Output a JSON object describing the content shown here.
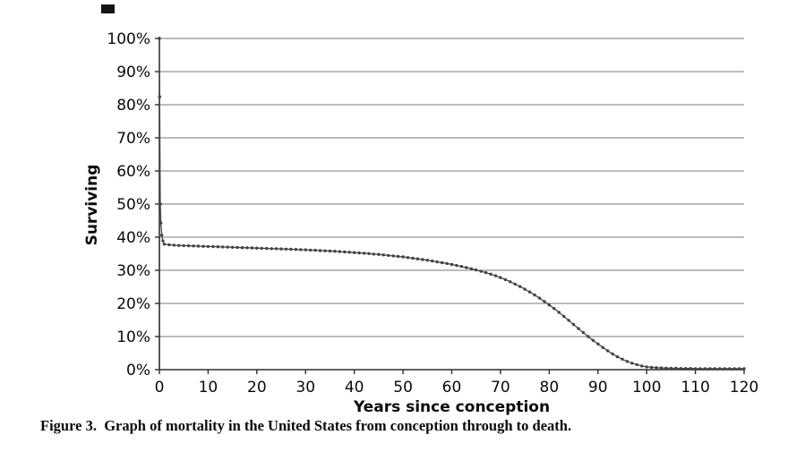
{
  "figure": {
    "caption": "Figure 3.  Graph of mortality in the United States from conception through to death."
  },
  "chart_data": {
    "type": "line",
    "title": "",
    "xlabel": "Years since conception",
    "ylabel": "Surviving",
    "xlim": [
      0,
      120
    ],
    "ylim": [
      0,
      100
    ],
    "grid": "horizontal",
    "legend_position": "none",
    "x_tick_values": [
      0,
      10,
      20,
      30,
      40,
      50,
      60,
      70,
      80,
      90,
      100,
      110,
      120
    ],
    "x_tick_labels": [
      "0",
      "10",
      "20",
      "30",
      "40",
      "50",
      "60",
      "70",
      "80",
      "90",
      "100",
      "110",
      "120"
    ],
    "y_tick_values": [
      0,
      10,
      20,
      30,
      40,
      50,
      60,
      70,
      80,
      90,
      100
    ],
    "y_tick_labels": [
      "0%",
      "10%",
      "20%",
      "30%",
      "40%",
      "50%",
      "60%",
      "70%",
      "80%",
      "90%",
      "100%"
    ],
    "colors": {
      "line": "#4a4a4a",
      "marker": "#434343",
      "grid": "#7a7a7a",
      "axis": "#2e2e2e",
      "text": "#0a0a0a"
    },
    "marker_style": "dot",
    "series": [
      {
        "name": "Surviving",
        "points": [
          [
            0,
            100
          ],
          [
            0.06,
            82.4
          ],
          [
            0.18,
            50
          ],
          [
            0.32,
            44.3
          ],
          [
            0.5,
            40.6
          ],
          [
            0.72,
            38.9
          ],
          [
            1,
            37.9
          ],
          [
            2,
            37.7
          ],
          [
            3,
            37.6
          ],
          [
            4,
            37.5
          ],
          [
            5,
            37.45
          ],
          [
            6,
            37.4
          ],
          [
            7,
            37.35
          ],
          [
            8,
            37.3
          ],
          [
            9,
            37.25
          ],
          [
            10,
            37.2
          ],
          [
            11,
            37.15
          ],
          [
            12,
            37.1
          ],
          [
            13,
            37.05
          ],
          [
            14,
            37
          ],
          [
            15,
            36.95
          ],
          [
            16,
            36.9
          ],
          [
            17,
            36.85
          ],
          [
            18,
            36.8
          ],
          [
            19,
            36.75
          ],
          [
            20,
            36.7
          ],
          [
            21,
            36.65
          ],
          [
            22,
            36.6
          ],
          [
            23,
            36.55
          ],
          [
            24,
            36.5
          ],
          [
            25,
            36.45
          ],
          [
            26,
            36.4
          ],
          [
            27,
            36.35
          ],
          [
            28,
            36.3
          ],
          [
            29,
            36.25
          ],
          [
            30,
            36.2
          ],
          [
            31,
            36.1
          ],
          [
            32,
            36.05
          ],
          [
            33,
            35.95
          ],
          [
            34,
            35.9
          ],
          [
            35,
            35.8
          ],
          [
            36,
            35.75
          ],
          [
            37,
            35.65
          ],
          [
            38,
            35.55
          ],
          [
            39,
            35.45
          ],
          [
            40,
            35.35
          ],
          [
            41,
            35.25
          ],
          [
            42,
            35.15
          ],
          [
            43,
            35.05
          ],
          [
            44,
            34.9
          ],
          [
            45,
            34.8
          ],
          [
            46,
            34.65
          ],
          [
            47,
            34.5
          ],
          [
            48,
            34.35
          ],
          [
            49,
            34.2
          ],
          [
            50,
            34.05
          ],
          [
            51,
            33.85
          ],
          [
            52,
            33.65
          ],
          [
            53,
            33.45
          ],
          [
            54,
            33.25
          ],
          [
            55,
            33.05
          ],
          [
            56,
            32.8
          ],
          [
            57,
            32.55
          ],
          [
            58,
            32.3
          ],
          [
            59,
            32.05
          ],
          [
            60,
            31.75
          ],
          [
            61,
            31.45
          ],
          [
            62,
            31.15
          ],
          [
            63,
            30.8
          ],
          [
            64,
            30.45
          ],
          [
            65,
            30.1
          ],
          [
            66,
            29.7
          ],
          [
            67,
            29.3
          ],
          [
            68,
            28.85
          ],
          [
            69,
            28.35
          ],
          [
            70,
            27.8
          ],
          [
            71,
            27.2
          ],
          [
            72,
            26.55
          ],
          [
            73,
            25.85
          ],
          [
            74,
            25.1
          ],
          [
            75,
            24.3
          ],
          [
            76,
            23.45
          ],
          [
            77,
            22.55
          ],
          [
            78,
            21.6
          ],
          [
            79,
            20.6
          ],
          [
            80,
            19.55
          ],
          [
            81,
            18.45
          ],
          [
            82,
            17.3
          ],
          [
            83,
            16.1
          ],
          [
            84,
            14.9
          ],
          [
            85,
            13.65
          ],
          [
            86,
            12.4
          ],
          [
            87,
            11.2
          ],
          [
            88,
            10
          ],
          [
            89,
            8.85
          ],
          [
            90,
            7.75
          ],
          [
            91,
            6.7
          ],
          [
            92,
            5.7
          ],
          [
            93,
            4.75
          ],
          [
            94,
            3.9
          ],
          [
            95,
            3.15
          ],
          [
            96,
            2.5
          ],
          [
            97,
            1.95
          ],
          [
            98,
            1.5
          ],
          [
            99,
            1.1
          ],
          [
            100,
            0.85
          ],
          [
            101,
            0.7
          ],
          [
            102,
            0.6
          ],
          [
            103,
            0.5
          ],
          [
            104,
            0.45
          ],
          [
            105,
            0.4
          ],
          [
            106,
            0.4
          ],
          [
            107,
            0.35
          ],
          [
            108,
            0.35
          ],
          [
            109,
            0.35
          ],
          [
            110,
            0.3
          ],
          [
            111,
            0.3
          ],
          [
            112,
            0.3
          ],
          [
            113,
            0.3
          ],
          [
            114,
            0.3
          ],
          [
            115,
            0.3
          ],
          [
            116,
            0.3
          ],
          [
            117,
            0.3
          ],
          [
            118,
            0.3
          ],
          [
            119,
            0.3
          ],
          [
            120,
            0.3
          ]
        ]
      }
    ]
  }
}
